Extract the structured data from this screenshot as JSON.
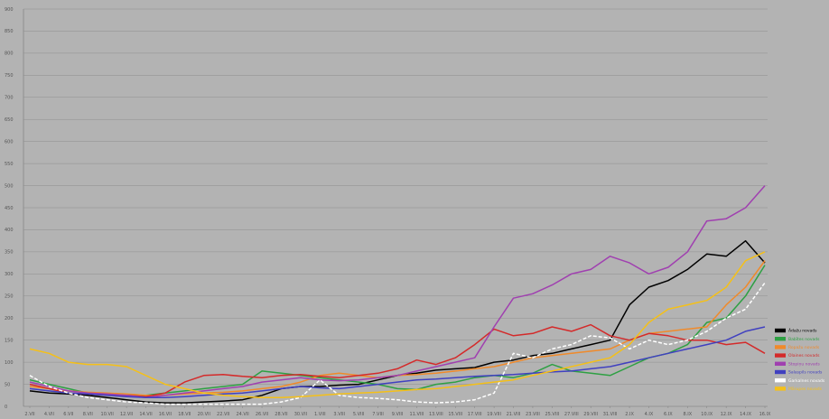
{
  "chart_data": {
    "type": "line",
    "title": "",
    "xlabel": "",
    "ylabel": "",
    "ylim": [
      0,
      900
    ],
    "yticks": [
      0,
      50,
      100,
      150,
      200,
      250,
      300,
      350,
      400,
      450,
      500,
      550,
      600,
      650,
      700,
      750,
      800,
      850,
      900
    ],
    "grid": true,
    "legend_position": "right",
    "categories": [
      "2.VII",
      "4.VII",
      "6.VII",
      "8.VII",
      "10.VII",
      "12.VII",
      "14.VII",
      "16.VII",
      "18.VII",
      "20.VII",
      "22.VII",
      "24.VII",
      "26.VII",
      "28.VII",
      "30.VII",
      "1.VIII",
      "3.VIII",
      "5.VIII",
      "7.VIII",
      "9.VIII",
      "11.VIII",
      "13.VIII",
      "15.VIII",
      "17.VIII",
      "19.VIII",
      "21.VIII",
      "23.VIII",
      "25.VIII",
      "27.VIII",
      "29.VIII",
      "31.VIII",
      "2.IX",
      "4.IX",
      "6.IX",
      "8.IX",
      "10.IX",
      "12.IX",
      "14.IX",
      "16.IX"
    ],
    "tick_labels": [
      "2.VII",
      "4.VII",
      "6.VII",
      "8.VII",
      "10.VII",
      "12.VII",
      "14.VII",
      "16.VII",
      "18.VII",
      "20.VII",
      "22.VII",
      "24.VII",
      "26.VII",
      "28.VII",
      "30.VII",
      "1.VIII",
      "3.VIII",
      "5.VIII",
      "7.VIII",
      "9.VIII",
      "11.VIII",
      "13.VIII",
      "15.VIII",
      "17.VIII",
      "19.VIII",
      "21.VIII",
      "23.VIII",
      "25.VIII",
      "27.VIII",
      "29.VIII",
      "31.VIII",
      "2.IX",
      "4.IX",
      "6.IX",
      "8.IX",
      "10.IX",
      "12.IX",
      "14.IX",
      "16.IX"
    ],
    "series": [
      {
        "name": "Ādažu novads",
        "color": "#000000",
        "dash": false,
        "values": [
          35,
          30,
          28,
          25,
          20,
          15,
          10,
          8,
          8,
          10,
          12,
          15,
          25,
          40,
          45,
          45,
          48,
          50,
          60,
          70,
          75,
          82,
          85,
          88,
          100,
          105,
          115,
          120,
          130,
          140,
          150,
          230,
          270,
          285,
          310,
          345,
          340,
          375,
          325
        ]
      },
      {
        "name": "Babītes novads",
        "color": "#2ea043",
        "dash": false,
        "values": [
          60,
          50,
          40,
          30,
          28,
          25,
          25,
          30,
          35,
          40,
          45,
          50,
          80,
          75,
          70,
          65,
          60,
          55,
          50,
          40,
          38,
          50,
          55,
          65,
          70,
          65,
          75,
          95,
          80,
          75,
          70,
          90,
          110,
          120,
          140,
          190,
          200,
          250,
          320
        ]
      },
      {
        "name": "Ropažu novads",
        "color": "#f08a2a",
        "dash": false,
        "values": [
          45,
          40,
          35,
          32,
          30,
          28,
          25,
          25,
          28,
          30,
          32,
          35,
          40,
          45,
          55,
          70,
          75,
          70,
          65,
          70,
          72,
          75,
          80,
          85,
          90,
          100,
          110,
          115,
          120,
          125,
          130,
          150,
          165,
          170,
          175,
          180,
          230,
          270,
          330
        ]
      },
      {
        "name": "Olaines novads",
        "color": "#d42a2a",
        "dash": false,
        "values": [
          50,
          40,
          30,
          28,
          25,
          25,
          22,
          30,
          55,
          70,
          72,
          68,
          65,
          70,
          72,
          68,
          65,
          70,
          75,
          85,
          105,
          95,
          110,
          140,
          175,
          160,
          165,
          180,
          170,
          185,
          160,
          150,
          165,
          160,
          150,
          150,
          140,
          145,
          120
        ]
      },
      {
        "name": "Stopiņu novads",
        "color": "#a040b0",
        "dash": false,
        "values": [
          55,
          45,
          35,
          30,
          28,
          25,
          20,
          25,
          30,
          35,
          40,
          45,
          55,
          60,
          65,
          60,
          58,
          60,
          65,
          70,
          80,
          90,
          100,
          110,
          180,
          245,
          255,
          275,
          300,
          310,
          340,
          325,
          300,
          315,
          350,
          420,
          425,
          450,
          500
        ]
      },
      {
        "name": "Salaspils novads",
        "color": "#4040c0",
        "dash": false,
        "values": [
          40,
          35,
          30,
          28,
          25,
          22,
          20,
          20,
          22,
          25,
          28,
          30,
          35,
          40,
          45,
          42,
          40,
          45,
          50,
          55,
          60,
          62,
          65,
          68,
          70,
          72,
          75,
          78,
          80,
          85,
          90,
          100,
          110,
          120,
          130,
          140,
          150,
          170,
          180
        ]
      },
      {
        "name": "Garkalnes novads",
        "color": "#ffffff",
        "dash": true,
        "values": [
          70,
          45,
          30,
          20,
          15,
          10,
          8,
          5,
          5,
          5,
          5,
          5,
          5,
          10,
          20,
          60,
          25,
          20,
          18,
          15,
          10,
          8,
          10,
          15,
          30,
          120,
          110,
          130,
          140,
          160,
          155,
          130,
          150,
          140,
          150,
          170,
          200,
          220,
          280
        ]
      },
      {
        "name": "Mārupes novads",
        "color": "#f5c018",
        "dash": false,
        "values": [
          130,
          120,
          100,
          95,
          95,
          90,
          70,
          50,
          40,
          30,
          25,
          22,
          20,
          20,
          22,
          25,
          28,
          30,
          32,
          35,
          38,
          40,
          45,
          50,
          55,
          60,
          70,
          80,
          90,
          100,
          110,
          140,
          190,
          220,
          230,
          240,
          270,
          330,
          350
        ]
      }
    ]
  }
}
